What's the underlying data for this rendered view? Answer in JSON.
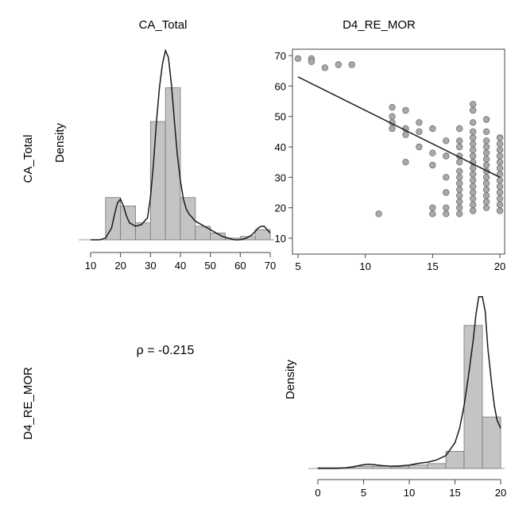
{
  "column_titles": [
    "CA_Total",
    "D4_RE_MOR"
  ],
  "row_titles": [
    "CA_Total",
    "D4_RE_MOR"
  ],
  "density_label": "Density",
  "correlation_text": "ρ = -0.215",
  "colors": {
    "bar_fill": "#c4c4c4",
    "bar_stroke": "#777777",
    "line": "#1a1a1a",
    "point_fill": "#a9a9a9",
    "point_stroke": "#6e6e6e"
  },
  "chart_data": [
    {
      "type": "bar",
      "panel": "CA_Total histogram with density",
      "title": "CA_Total",
      "ylabel": "Density",
      "xlim": [
        10,
        70
      ],
      "x_ticks": [
        "10",
        "20",
        "30",
        "40",
        "50",
        "60",
        "70"
      ],
      "bins": [
        [
          15,
          20
        ],
        [
          20,
          25
        ],
        [
          25,
          30
        ],
        [
          30,
          35
        ],
        [
          35,
          40
        ],
        [
          40,
          45
        ],
        [
          45,
          50
        ],
        [
          50,
          55
        ],
        [
          55,
          60
        ],
        [
          60,
          65
        ],
        [
          65,
          70
        ]
      ],
      "values": [
        0.025,
        0.02,
        0.01,
        0.07,
        0.09,
        0.025,
        0.008,
        0.004,
        0.001,
        0.002,
        0.006
      ],
      "ylim": [
        0,
        0.11
      ],
      "density_x": [
        10,
        13,
        15,
        17,
        18,
        19,
        20,
        21,
        22,
        23,
        25,
        27,
        29,
        30,
        31,
        32,
        33,
        34,
        35,
        36,
        37,
        38,
        39,
        40,
        41,
        42,
        43,
        44,
        45,
        46,
        48,
        50,
        52,
        54,
        56,
        58,
        60,
        62,
        64,
        66,
        67,
        68,
        69,
        70
      ],
      "density_y": [
        0,
        0,
        0.001,
        0.007,
        0.015,
        0.022,
        0.024,
        0.02,
        0.014,
        0.01,
        0.008,
        0.009,
        0.013,
        0.025,
        0.045,
        0.07,
        0.09,
        0.104,
        0.112,
        0.108,
        0.092,
        0.07,
        0.05,
        0.035,
        0.024,
        0.018,
        0.015,
        0.013,
        0.011,
        0.01,
        0.008,
        0.006,
        0.004,
        0.002,
        0.001,
        0,
        0,
        0.001,
        0.003,
        0.007,
        0.008,
        0.008,
        0.006,
        0.004
      ]
    },
    {
      "type": "scatter",
      "panel": "CA_Total vs D4_RE_MOR",
      "xlim": [
        5,
        20
      ],
      "ylim": [
        10,
        70
      ],
      "x_ticks": [
        "5",
        "10",
        "15",
        "20"
      ],
      "y_ticks": [
        "10",
        "20",
        "30",
        "40",
        "50",
        "60",
        "70"
      ],
      "trend_line": {
        "x": [
          5,
          20
        ],
        "y": [
          63,
          30
        ]
      },
      "points": [
        [
          5,
          69
        ],
        [
          6,
          69
        ],
        [
          6,
          68
        ],
        [
          7,
          66
        ],
        [
          8,
          67
        ],
        [
          9,
          67
        ],
        [
          11,
          18
        ],
        [
          12,
          53
        ],
        [
          12,
          50
        ],
        [
          12,
          48
        ],
        [
          12,
          46
        ],
        [
          13,
          52
        ],
        [
          13,
          46
        ],
        [
          13,
          44
        ],
        [
          13,
          35
        ],
        [
          14,
          48
        ],
        [
          14,
          45
        ],
        [
          14,
          40
        ],
        [
          15,
          46
        ],
        [
          15,
          38
        ],
        [
          15,
          34
        ],
        [
          15,
          20
        ],
        [
          15,
          18
        ],
        [
          16,
          42
        ],
        [
          16,
          37
        ],
        [
          16,
          30
        ],
        [
          16,
          25
        ],
        [
          16,
          20
        ],
        [
          16,
          18
        ],
        [
          17,
          46
        ],
        [
          17,
          42
        ],
        [
          17,
          40
        ],
        [
          17,
          37
        ],
        [
          17,
          35
        ],
        [
          17,
          32
        ],
        [
          17,
          30
        ],
        [
          17,
          28
        ],
        [
          17,
          26
        ],
        [
          17,
          24
        ],
        [
          17,
          22
        ],
        [
          17,
          20
        ],
        [
          17,
          18
        ],
        [
          18,
          54
        ],
        [
          18,
          52
        ],
        [
          18,
          48
        ],
        [
          18,
          45
        ],
        [
          18,
          43
        ],
        [
          18,
          41
        ],
        [
          18,
          39
        ],
        [
          18,
          37
        ],
        [
          18,
          35
        ],
        [
          18,
          33
        ],
        [
          18,
          31
        ],
        [
          18,
          29
        ],
        [
          18,
          27
        ],
        [
          18,
          25
        ],
        [
          18,
          23
        ],
        [
          18,
          21
        ],
        [
          18,
          19
        ],
        [
          19,
          49
        ],
        [
          19,
          45
        ],
        [
          19,
          42
        ],
        [
          19,
          40
        ],
        [
          19,
          38
        ],
        [
          19,
          36
        ],
        [
          19,
          34
        ],
        [
          19,
          32
        ],
        [
          19,
          30
        ],
        [
          19,
          28
        ],
        [
          19,
          26
        ],
        [
          19,
          24
        ],
        [
          19,
          22
        ],
        [
          19,
          20
        ],
        [
          20,
          43
        ],
        [
          20,
          41
        ],
        [
          20,
          39
        ],
        [
          20,
          37
        ],
        [
          20,
          35
        ],
        [
          20,
          33
        ],
        [
          20,
          31
        ],
        [
          20,
          29
        ],
        [
          20,
          27
        ],
        [
          20,
          25
        ],
        [
          20,
          23
        ],
        [
          20,
          21
        ],
        [
          20,
          19
        ]
      ]
    },
    {
      "type": "bar",
      "panel": "D4_RE_MOR histogram with density",
      "ylabel": "Density",
      "xlim": [
        0,
        20
      ],
      "x_ticks": [
        "0",
        "5",
        "10",
        "15",
        "20"
      ],
      "bins": [
        [
          0,
          2
        ],
        [
          2,
          4
        ],
        [
          4,
          6
        ],
        [
          6,
          8
        ],
        [
          8,
          10
        ],
        [
          10,
          12
        ],
        [
          12,
          14
        ],
        [
          14,
          16
        ],
        [
          16,
          18
        ],
        [
          18,
          20
        ]
      ],
      "values": [
        0.003,
        0.003,
        0.008,
        0.008,
        0.006,
        0.012,
        0.017,
        0.06,
        0.5,
        0.18
      ],
      "ylim": [
        0,
        0.68
      ],
      "density_x": [
        0,
        2,
        3,
        4,
        5,
        5.5,
        6,
        7,
        8,
        9,
        10,
        11,
        12,
        13,
        14,
        15,
        15.5,
        16,
        16.5,
        17,
        17.3,
        17.6,
        18,
        18.3,
        18.6,
        19,
        19.3,
        19.6,
        20
      ],
      "density_y": [
        0,
        0,
        0.002,
        0.007,
        0.013,
        0.015,
        0.014,
        0.01,
        0.008,
        0.009,
        0.012,
        0.018,
        0.022,
        0.03,
        0.045,
        0.09,
        0.14,
        0.22,
        0.33,
        0.45,
        0.54,
        0.6,
        0.6,
        0.55,
        0.42,
        0.3,
        0.22,
        0.17,
        0.14
      ]
    }
  ]
}
